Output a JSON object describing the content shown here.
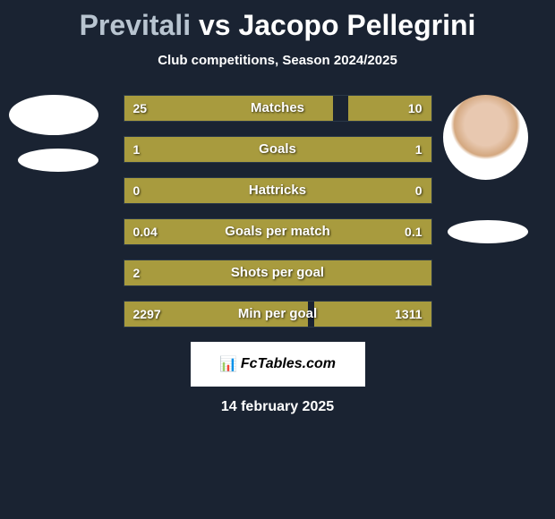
{
  "header": {
    "player1": "Previtali",
    "vs": "vs",
    "player2": "Jacopo Pellegrini",
    "subtitle": "Club competitions, Season 2024/2025"
  },
  "colors": {
    "background": "#1a2332",
    "bar_fill": "#a89b3e",
    "bar_border": "#2a3848",
    "text": "#ffffff",
    "player1_title": "#b8c4d0"
  },
  "stats": [
    {
      "label": "Matches",
      "left_val": "25",
      "right_val": "10",
      "left_pct": 68,
      "right_pct": 27
    },
    {
      "label": "Goals",
      "left_val": "1",
      "right_val": "1",
      "left_pct": 50,
      "right_pct": 50
    },
    {
      "label": "Hattricks",
      "left_val": "0",
      "right_val": "0",
      "left_pct": 50,
      "right_pct": 50
    },
    {
      "label": "Goals per match",
      "left_val": "0.04",
      "right_val": "0.1",
      "left_pct": 34,
      "right_pct": 66
    },
    {
      "label": "Shots per goal",
      "left_val": "2",
      "right_val": "",
      "left_pct": 100,
      "right_pct": 0
    },
    {
      "label": "Min per goal",
      "left_val": "2297",
      "right_val": "1311",
      "left_pct": 60,
      "right_pct": 38
    }
  ],
  "footer": {
    "brand_icon": "📊",
    "brand_text": "FcTables.com",
    "date": "14 february 2025"
  }
}
